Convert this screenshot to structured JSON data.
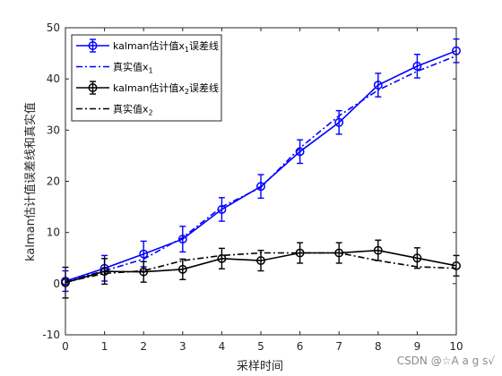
{
  "chart_data": {
    "type": "line",
    "xlabel": "采样时间",
    "ylabel": "kalman估计值误差线和真实值",
    "xlim": [
      0,
      10
    ],
    "ylim": [
      -10,
      50
    ],
    "xticks": [
      "0",
      "1",
      "2",
      "3",
      "4",
      "5",
      "6",
      "7",
      "8",
      "9",
      "10"
    ],
    "yticks": [
      "-10",
      "0",
      "10",
      "20",
      "30",
      "40",
      "50"
    ],
    "grid": false,
    "legend_position": "top-left",
    "x": [
      0,
      1,
      2,
      3,
      4,
      5,
      6,
      7,
      8,
      9,
      10
    ],
    "series": [
      {
        "name": "kalman估计值x1误差线",
        "legend_main": "kalman估计值x",
        "legend_sub": "1",
        "legend_tail": "误差线",
        "style": "solid-circle-errorbar",
        "color": "#0000ff",
        "values": [
          0.5,
          3.0,
          5.8,
          8.7,
          14.5,
          19.0,
          25.8,
          31.5,
          38.8,
          42.5,
          45.5
        ],
        "errors": [
          2.0,
          2.5,
          2.5,
          2.5,
          2.3,
          2.3,
          2.3,
          2.3,
          2.3,
          2.3,
          2.3
        ]
      },
      {
        "name": "真实值x1",
        "legend_main": "真实值x",
        "legend_sub": "1",
        "legend_tail": "",
        "style": "dashdot",
        "color": "#0000ff",
        "values": [
          0.5,
          2.5,
          4.8,
          9.0,
          15.0,
          18.8,
          26.5,
          32.8,
          37.8,
          41.5,
          44.5
        ]
      },
      {
        "name": "kalman估计值x2误差线",
        "legend_main": "kalman估计值x",
        "legend_sub": "2",
        "legend_tail": "误差线",
        "style": "solid-circle-errorbar",
        "color": "#000000",
        "values": [
          0.2,
          2.4,
          2.3,
          2.8,
          4.9,
          4.5,
          6.0,
          6.0,
          6.5,
          5.0,
          3.5
        ],
        "errors": [
          3.0,
          2.5,
          2.0,
          2.0,
          2.0,
          2.0,
          2.0,
          2.0,
          2.0,
          2.0,
          2.0
        ]
      },
      {
        "name": "真实值x2",
        "legend_main": "真实值x",
        "legend_sub": "2",
        "legend_tail": "",
        "style": "dashdot",
        "color": "#000000",
        "values": [
          0.3,
          2.0,
          2.5,
          4.5,
          5.5,
          6.0,
          6.0,
          6.0,
          4.5,
          3.3,
          3.0
        ]
      }
    ]
  },
  "watermark": "CSDN @☆A a g s√"
}
